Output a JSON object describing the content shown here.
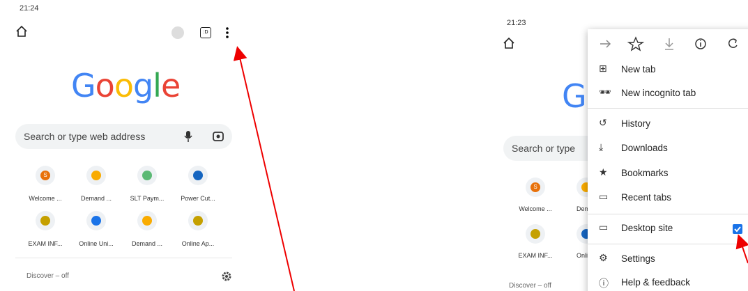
{
  "left_screen": {
    "status_time": "21:24",
    "tab_count": ":D",
    "logo": "Google",
    "search_placeholder": "Search or type web address",
    "shortcuts": [
      "Welcome ...",
      "Demand ...",
      "SLT Paym...",
      "Power Cut...",
      "EXAM INF...",
      "Online Uni...",
      "Demand ...",
      "Online Ap..."
    ],
    "favicon_letter": "S",
    "discover": "Discover – off"
  },
  "right_screen": {
    "status_time": "21:23",
    "logo": "G",
    "search_placeholder": "Search or type",
    "shortcuts": [
      "Welcome ...",
      "Dem",
      "EXAM INF...",
      "Onli"
    ],
    "favicon_letter": "S",
    "discover": "Discover – off",
    "menu": {
      "items": [
        "New tab",
        "New incognito tab",
        "History",
        "Downloads",
        "Bookmarks",
        "Recent tabs",
        "Desktop site",
        "Settings",
        "Help & feedback"
      ]
    }
  }
}
